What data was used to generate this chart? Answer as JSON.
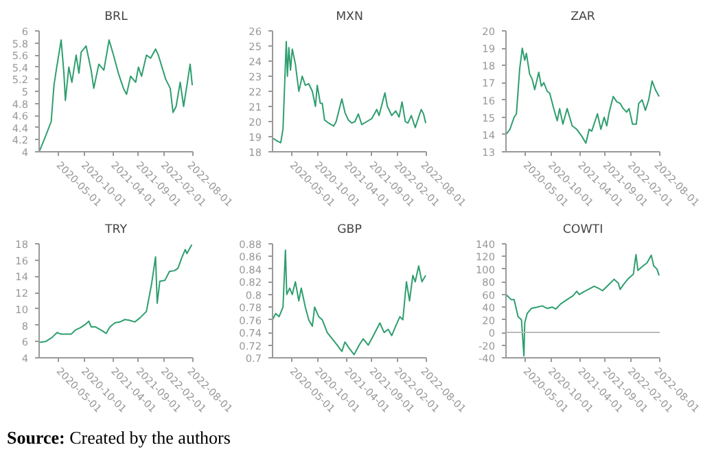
{
  "chart_data": [
    {
      "type": "line",
      "title": "BRL",
      "color": "#2e9e6e",
      "grid": false,
      "xlim": [
        "2020-01-01",
        "2022-08-01"
      ],
      "xticks": [
        "2020-05-01",
        "2020-10-01",
        "2021-04-01",
        "2021-09-01",
        "2022-02-01",
        "2022-08-01"
      ],
      "ylim": [
        4,
        6
      ],
      "yticks": [
        4,
        4.2,
        4.4,
        4.6,
        4.8,
        5,
        5.2,
        5.4,
        5.6,
        5.8,
        6
      ],
      "x": [
        "2020-01-01",
        "2020-02-01",
        "2020-03-15",
        "2020-04-01",
        "2020-04-15",
        "2020-05-15",
        "2020-06-01",
        "2020-06-10",
        "2020-07-01",
        "2020-07-20",
        "2020-08-15",
        "2020-09-01",
        "2020-09-15",
        "2020-10-15",
        "2020-11-15",
        "2020-12-01",
        "2021-01-01",
        "2021-02-01",
        "2021-03-05",
        "2021-04-01",
        "2021-05-01",
        "2021-06-01",
        "2021-06-20",
        "2021-07-15",
        "2021-08-15",
        "2021-09-01",
        "2021-09-20",
        "2021-10-20",
        "2021-11-15",
        "2021-12-15",
        "2022-01-01",
        "2022-02-15",
        "2022-03-15",
        "2022-04-01",
        "2022-04-20",
        "2022-05-15",
        "2022-06-05",
        "2022-07-01",
        "2022-07-15",
        "2022-07-28"
      ],
      "values": [
        4.0,
        4.2,
        4.5,
        5.1,
        5.35,
        5.85,
        5.3,
        4.85,
        5.4,
        5.15,
        5.6,
        5.3,
        5.65,
        5.75,
        5.35,
        5.05,
        5.45,
        5.35,
        5.85,
        5.6,
        5.3,
        5.05,
        4.95,
        5.25,
        5.15,
        5.4,
        5.25,
        5.6,
        5.55,
        5.7,
        5.6,
        5.2,
        5.05,
        4.65,
        4.75,
        5.15,
        4.75,
        5.2,
        5.45,
        5.1
      ]
    },
    {
      "type": "line",
      "title": "MXN",
      "color": "#2e9e6e",
      "grid": false,
      "xlim": [
        "2020-01-01",
        "2022-08-01"
      ],
      "xticks": [
        "2020-05-01",
        "2020-10-01",
        "2021-04-01",
        "2021-09-01",
        "2022-02-01",
        "2022-08-01"
      ],
      "ylim": [
        18,
        26
      ],
      "yticks": [
        18,
        19,
        20,
        21,
        22,
        23,
        24,
        25,
        26
      ],
      "x": [
        "2020-01-01",
        "2020-02-01",
        "2020-02-20",
        "2020-03-05",
        "2020-03-25",
        "2020-04-01",
        "2020-04-10",
        "2020-04-20",
        "2020-05-01",
        "2020-05-20",
        "2020-06-10",
        "2020-07-01",
        "2020-07-20",
        "2020-08-10",
        "2020-09-01",
        "2020-09-20",
        "2020-10-01",
        "2020-10-20",
        "2020-11-01",
        "2020-11-15",
        "2020-12-10",
        "2021-01-10",
        "2021-01-25",
        "2021-03-01",
        "2021-03-20",
        "2021-04-10",
        "2021-05-01",
        "2021-05-20",
        "2021-06-10",
        "2021-07-01",
        "2021-08-01",
        "2021-09-01",
        "2021-10-01",
        "2021-10-15",
        "2021-11-20",
        "2021-12-05",
        "2022-01-01",
        "2022-01-25",
        "2022-02-15",
        "2022-03-05",
        "2022-03-25",
        "2022-04-10",
        "2022-05-01",
        "2022-05-25",
        "2022-06-15",
        "2022-07-01",
        "2022-07-15",
        "2022-07-28"
      ],
      "values": [
        18.9,
        18.7,
        18.6,
        19.5,
        25.3,
        23.0,
        24.9,
        23.4,
        24.8,
        23.8,
        22.0,
        23.0,
        22.4,
        22.5,
        22.0,
        21.0,
        22.4,
        21.2,
        21.2,
        20.1,
        19.9,
        19.7,
        20.0,
        21.5,
        20.6,
        20.1,
        19.9,
        20.0,
        20.5,
        19.8,
        20.0,
        20.2,
        20.8,
        20.4,
        21.9,
        21.0,
        20.4,
        20.7,
        20.3,
        21.3,
        20.0,
        19.9,
        20.4,
        19.6,
        20.3,
        20.8,
        20.5,
        19.9
      ]
    },
    {
      "type": "line",
      "title": "ZAR",
      "color": "#2e9e6e",
      "grid": false,
      "xlim": [
        "2020-01-01",
        "2022-08-01"
      ],
      "xticks": [
        "2020-05-01",
        "2020-10-01",
        "2021-04-01",
        "2021-09-01",
        "2022-02-01",
        "2022-08-01"
      ],
      "ylim": [
        13,
        20
      ],
      "yticks": [
        13,
        14,
        15,
        16,
        17,
        18,
        19,
        20
      ],
      "x": [
        "2020-01-01",
        "2020-01-25",
        "2020-02-20",
        "2020-03-05",
        "2020-03-25",
        "2020-04-10",
        "2020-04-25",
        "2020-05-05",
        "2020-05-25",
        "2020-06-10",
        "2020-06-25",
        "2020-07-20",
        "2020-08-05",
        "2020-08-20",
        "2020-09-10",
        "2020-09-25",
        "2020-10-20",
        "2020-11-10",
        "2020-11-25",
        "2020-12-15",
        "2021-01-10",
        "2021-02-10",
        "2021-03-10",
        "2021-04-10",
        "2021-05-05",
        "2021-05-25",
        "2021-06-10",
        "2021-07-01",
        "2021-07-15",
        "2021-08-05",
        "2021-08-25",
        "2021-09-10",
        "2021-09-25",
        "2021-10-20",
        "2021-11-10",
        "2021-12-01",
        "2021-12-20",
        "2022-01-10",
        "2022-01-25",
        "2022-02-15",
        "2022-03-10",
        "2022-03-25",
        "2022-04-15",
        "2022-05-05",
        "2022-05-25",
        "2022-06-15",
        "2022-07-05",
        "2022-07-28"
      ],
      "values": [
        14.0,
        14.3,
        15.0,
        15.2,
        17.8,
        19.0,
        18.3,
        18.7,
        17.5,
        17.2,
        16.6,
        17.6,
        16.8,
        17.0,
        16.5,
        16.4,
        15.5,
        14.8,
        15.5,
        14.6,
        15.5,
        14.5,
        14.3,
        13.9,
        13.5,
        14.3,
        14.2,
        14.8,
        15.2,
        14.3,
        15.0,
        14.5,
        15.3,
        16.2,
        15.9,
        15.8,
        15.5,
        15.3,
        15.5,
        14.6,
        14.6,
        15.8,
        16.0,
        15.4,
        16.0,
        17.1,
        16.6,
        16.2
      ]
    },
    {
      "type": "line",
      "title": "TRY",
      "color": "#2e9e6e",
      "grid": false,
      "xlim": [
        "2020-01-01",
        "2022-08-01"
      ],
      "xticks": [
        "2020-05-01",
        "2020-10-01",
        "2021-04-01",
        "2021-09-01",
        "2022-02-01",
        "2022-08-01"
      ],
      "ylim": [
        4,
        18
      ],
      "yticks": [
        4,
        6,
        8,
        10,
        12,
        14,
        16,
        18
      ],
      "x": [
        "2020-01-01",
        "2020-02-10",
        "2020-03-20",
        "2020-04-20",
        "2020-05-15",
        "2020-06-15",
        "2020-07-15",
        "2020-08-10",
        "2020-09-10",
        "2020-10-10",
        "2020-11-01",
        "2020-11-15",
        "2020-12-10",
        "2021-01-15",
        "2021-02-15",
        "2021-03-10",
        "2021-04-10",
        "2021-05-10",
        "2021-06-10",
        "2021-07-10",
        "2021-08-10",
        "2021-09-10",
        "2021-10-20",
        "2021-11-20",
        "2021-12-15",
        "2021-12-25",
        "2022-01-10",
        "2022-02-10",
        "2022-03-10",
        "2022-04-10",
        "2022-05-01",
        "2022-05-25",
        "2022-06-15",
        "2022-06-25",
        "2022-07-25"
      ],
      "values": [
        5.9,
        6.0,
        6.5,
        7.1,
        6.9,
        6.9,
        6.9,
        7.4,
        7.7,
        8.1,
        8.5,
        7.8,
        7.8,
        7.4,
        7.0,
        7.8,
        8.3,
        8.4,
        8.7,
        8.6,
        8.4,
        8.9,
        9.7,
        13.0,
        16.4,
        10.7,
        13.4,
        13.5,
        14.6,
        14.7,
        15.0,
        16.3,
        17.3,
        16.8,
        17.9
      ]
    },
    {
      "type": "line",
      "title": "GBP",
      "color": "#2e9e6e",
      "grid": false,
      "xlim": [
        "2020-01-01",
        "2022-08-01"
      ],
      "xticks": [
        "2020-05-01",
        "2020-10-01",
        "2021-04-01",
        "2021-09-01",
        "2022-02-01",
        "2022-08-01"
      ],
      "ylim": [
        0.7,
        0.88
      ],
      "yticks": [
        0.7,
        0.72,
        0.74,
        0.76,
        0.78,
        0.8,
        0.82,
        0.84,
        0.86,
        0.88
      ],
      "x": [
        "2020-01-01",
        "2020-01-20",
        "2020-02-10",
        "2020-03-05",
        "2020-03-20",
        "2020-03-28",
        "2020-04-15",
        "2020-05-01",
        "2020-05-20",
        "2020-06-10",
        "2020-06-25",
        "2020-07-20",
        "2020-08-10",
        "2020-09-01",
        "2020-09-15",
        "2020-10-10",
        "2020-11-01",
        "2020-12-01",
        "2021-01-01",
        "2021-02-01",
        "2021-03-01",
        "2021-03-20",
        "2021-04-15",
        "2021-05-15",
        "2021-06-15",
        "2021-07-10",
        "2021-08-10",
        "2021-09-10",
        "2021-10-20",
        "2021-11-15",
        "2021-12-10",
        "2022-01-01",
        "2022-01-25",
        "2022-02-20",
        "2022-03-10",
        "2022-04-01",
        "2022-04-20",
        "2022-05-10",
        "2022-05-25",
        "2022-06-15",
        "2022-07-05",
        "2022-07-28"
      ],
      "values": [
        0.76,
        0.77,
        0.765,
        0.78,
        0.87,
        0.8,
        0.81,
        0.8,
        0.82,
        0.79,
        0.81,
        0.78,
        0.76,
        0.75,
        0.78,
        0.765,
        0.76,
        0.74,
        0.73,
        0.72,
        0.71,
        0.725,
        0.715,
        0.705,
        0.72,
        0.73,
        0.72,
        0.735,
        0.755,
        0.74,
        0.745,
        0.735,
        0.75,
        0.765,
        0.76,
        0.82,
        0.79,
        0.83,
        0.82,
        0.845,
        0.82,
        0.83
      ]
    },
    {
      "type": "line",
      "title": "COWTI",
      "color": "#2e9e6e",
      "grid": false,
      "xlim": [
        "2020-01-01",
        "2022-08-01"
      ],
      "xticks": [
        "2020-05-01",
        "2020-10-01",
        "2021-04-01",
        "2021-09-01",
        "2022-02-01",
        "2022-08-01"
      ],
      "ylim": [
        -40,
        140
      ],
      "yticks": [
        -40,
        -20,
        0,
        20,
        40,
        60,
        80,
        100,
        120,
        140
      ],
      "ref_lines": [
        {
          "axis": "y",
          "value": 0,
          "color": "#bbbbbb"
        }
      ],
      "annotations": [
        "Source: Created by the authors"
      ],
      "x": [
        "2020-01-01",
        "2020-02-01",
        "2020-02-20",
        "2020-03-15",
        "2020-04-05",
        "2020-04-20",
        "2020-04-25",
        "2020-05-10",
        "2020-06-05",
        "2020-07-10",
        "2020-08-10",
        "2020-09-10",
        "2020-10-10",
        "2020-11-01",
        "2020-12-01",
        "2021-01-10",
        "2021-02-15",
        "2021-03-10",
        "2021-03-25",
        "2021-04-20",
        "2021-05-20",
        "2021-06-25",
        "2021-07-20",
        "2021-08-15",
        "2021-09-20",
        "2021-10-25",
        "2021-11-20",
        "2021-12-01",
        "2021-12-20",
        "2022-01-20",
        "2022-02-20",
        "2022-03-08",
        "2022-03-20",
        "2022-04-15",
        "2022-05-15",
        "2022-06-10",
        "2022-06-25",
        "2022-07-15",
        "2022-07-28"
      ],
      "values": [
        60,
        52,
        52,
        25,
        20,
        -37,
        15,
        30,
        38,
        40,
        42,
        38,
        40,
        37,
        45,
        52,
        58,
        65,
        60,
        64,
        68,
        73,
        70,
        66,
        75,
        84,
        78,
        68,
        75,
        85,
        92,
        123,
        98,
        104,
        110,
        122,
        105,
        100,
        90
      ]
    }
  ]
}
